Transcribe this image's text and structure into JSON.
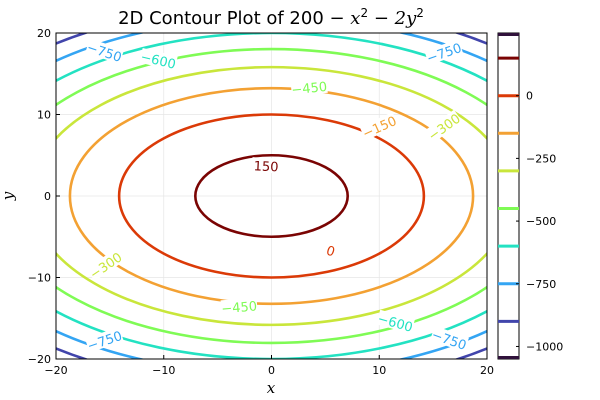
{
  "chart_data": {
    "type": "contour",
    "title": "2D Contour Plot of 200 − x² − 2y²",
    "title_parts": {
      "prefix": "2D Contour Plot of ",
      "base": "200",
      "op1": " − x",
      "exp1": "2",
      "op2": " − 2y",
      "exp2": "2"
    },
    "function": "200 - x^2 - 2y^2",
    "xlabel": "x",
    "ylabel": "y",
    "xlim": [
      -20,
      20
    ],
    "ylim": [
      -20,
      20
    ],
    "xticks": [
      -20,
      -10,
      0,
      10,
      20
    ],
    "yticks": [
      -20,
      -10,
      0,
      10,
      20
    ],
    "xtick_labels": [
      "−20",
      "−10",
      "0",
      "10",
      "20"
    ],
    "ytick_labels": [
      "−20",
      "−10",
      "0",
      "10",
      "20"
    ],
    "grid": true,
    "levels": [
      {
        "value": 150,
        "color": "#7a0403"
      },
      {
        "value": 0,
        "color": "#db3a07"
      },
      {
        "value": -150,
        "color": "#f3a133"
      },
      {
        "value": -300,
        "color": "#c9e63b"
      },
      {
        "value": -450,
        "color": "#7ffb55"
      },
      {
        "value": -600,
        "color": "#23e2c2"
      },
      {
        "value": -750,
        "color": "#34a5f3"
      },
      {
        "value": -900,
        "color": "#4145ab"
      },
      {
        "value": -1050,
        "color": "#30123b"
      }
    ],
    "contour_labels": [
      {
        "text": "150",
        "level": 150,
        "x": -0.5,
        "y": 3.7
      },
      {
        "text": "0",
        "level": 0,
        "x": 5.5,
        "y": -6.7
      },
      {
        "text": "−150",
        "level": -150,
        "x": 10.0,
        "y": 8.5
      },
      {
        "text": "−300",
        "level": -300,
        "x": 16.0,
        "y": 8.5
      },
      {
        "text": "−300",
        "level": -300,
        "x": -15.4,
        "y": -8.5
      },
      {
        "text": "−450",
        "level": -450,
        "x": 3.5,
        "y": 13.3
      },
      {
        "text": "−450",
        "level": -450,
        "x": -3.0,
        "y": -13.6
      },
      {
        "text": "−600",
        "level": -600,
        "x": -10.5,
        "y": 16.7
      },
      {
        "text": "−600",
        "level": -600,
        "x": 11.5,
        "y": -15.5
      },
      {
        "text": "−750",
        "level": -750,
        "x": -15.5,
        "y": 17.7
      },
      {
        "text": "−750",
        "level": -750,
        "x": 16.0,
        "y": 17.6
      },
      {
        "text": "−750",
        "level": -750,
        "x": -15.5,
        "y": -17.7
      },
      {
        "text": "−750",
        "level": -750,
        "x": 16.5,
        "y": -17.6
      }
    ],
    "colorbar": {
      "range": [
        -1050,
        250
      ],
      "ticks": [
        0,
        -250,
        -500,
        -750,
        -1000
      ],
      "tick_labels": [
        "0",
        "−250",
        "−500",
        "−750",
        "−1000"
      ],
      "lines": [
        {
          "value": 250,
          "color": "#30123b"
        },
        {
          "value": 150,
          "color": "#7a0403"
        },
        {
          "value": 0,
          "color": "#db3a07"
        },
        {
          "value": -150,
          "color": "#f3a133"
        },
        {
          "value": -300,
          "color": "#c9e63b"
        },
        {
          "value": -450,
          "color": "#7ffb55"
        },
        {
          "value": -600,
          "color": "#23e2c2"
        },
        {
          "value": -750,
          "color": "#34a5f3"
        },
        {
          "value": -900,
          "color": "#4145ab"
        },
        {
          "value": -1050,
          "color": "#30123b"
        }
      ]
    }
  }
}
